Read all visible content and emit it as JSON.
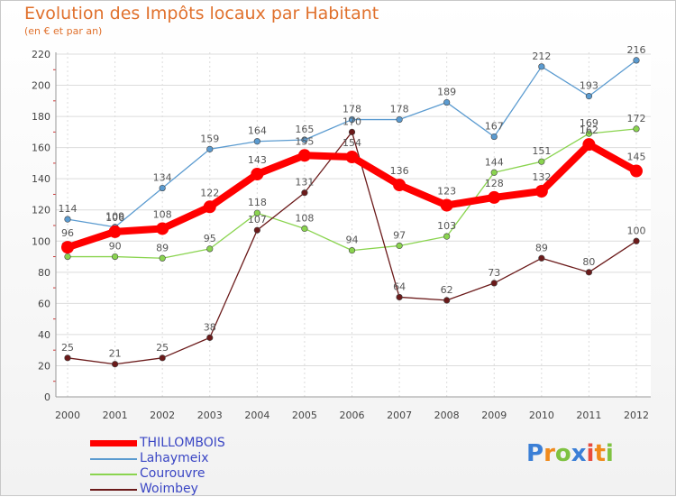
{
  "title": "Evolution des Impôts locaux par Habitant",
  "subtitle": "(en € et par an)",
  "logo": {
    "text": "Proxiti",
    "letters": [
      {
        "ch": "P",
        "color": "#3b7fd6"
      },
      {
        "ch": "r",
        "color": "#f08a1c"
      },
      {
        "ch": "o",
        "color": "#7fc241"
      },
      {
        "ch": "x",
        "color": "#3b7fd6"
      },
      {
        "ch": "i",
        "color": "#e84c3d"
      },
      {
        "ch": "t",
        "color": "#f08a1c"
      },
      {
        "ch": "i",
        "color": "#7fc241"
      }
    ]
  },
  "chart_data": {
    "type": "line",
    "title": "Evolution des Impôts locaux par Habitant",
    "subtitle": "(en € et par an)",
    "xlabel": "",
    "ylabel": "",
    "grid": true,
    "legend_position": "bottom-left",
    "ylim": [
      0,
      220
    ],
    "yticks": [
      0,
      20,
      40,
      60,
      80,
      100,
      120,
      140,
      160,
      180,
      200,
      220
    ],
    "categories": [
      "2000",
      "2001",
      "2002",
      "2003",
      "2004",
      "2005",
      "2006",
      "2007",
      "2008",
      "2009",
      "2010",
      "2011",
      "2012"
    ],
    "series": [
      {
        "name": "Lahaymeix",
        "color": "#5b9bd0",
        "values": [
          114,
          109,
          134,
          159,
          164,
          165,
          178,
          178,
          189,
          167,
          212,
          193,
          216
        ]
      },
      {
        "name": "Courouvre",
        "color": "#8ad44f",
        "values": [
          90,
          90,
          89,
          95,
          118,
          108,
          94,
          97,
          103,
          144,
          151,
          169,
          172
        ]
      },
      {
        "name": "Woimbey",
        "color": "#6b1a1a",
        "values": [
          25,
          21,
          25,
          38,
          107,
          131,
          170,
          64,
          62,
          73,
          89,
          80,
          100
        ]
      },
      {
        "name": "THILLOMBOIS",
        "color": "#ff0000",
        "values": [
          96,
          106,
          108,
          122,
          143,
          155,
          154,
          136,
          123,
          128,
          132,
          162,
          145
        ]
      }
    ],
    "legend_order": [
      "THILLOMBOIS",
      "Lahaymeix",
      "Courouvre",
      "Woimbey"
    ]
  }
}
